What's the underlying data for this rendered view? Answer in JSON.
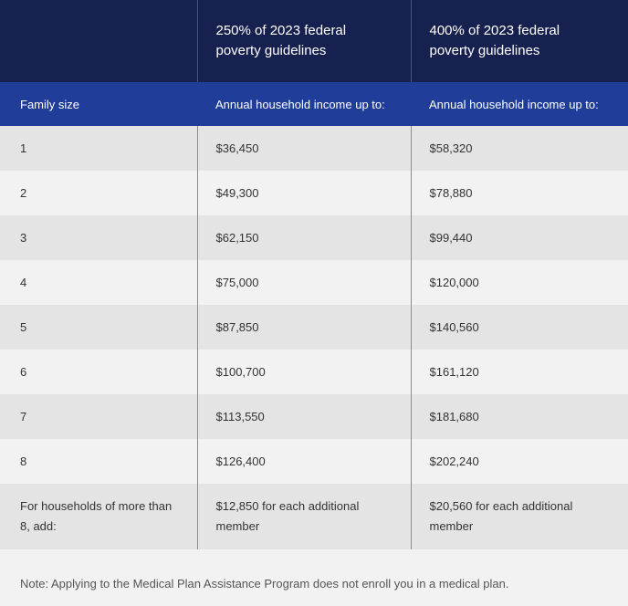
{
  "header": {
    "col_250": "250% of 2023 federal poverty guidelines",
    "col_400": "400% of 2023 federal poverty guidelines"
  },
  "subheader": {
    "family_size": "Family size",
    "income_250": "Annual household income up to:",
    "income_400": "Annual household income up to:"
  },
  "rows": [
    {
      "size": "1",
      "fpl250": "$36,450",
      "fpl400": "$58,320"
    },
    {
      "size": "2",
      "fpl250": "$49,300",
      "fpl400": "$78,880"
    },
    {
      "size": "3",
      "fpl250": "$62,150",
      "fpl400": "$99,440"
    },
    {
      "size": "4",
      "fpl250": "$75,000",
      "fpl400": "$120,000"
    },
    {
      "size": "5",
      "fpl250": "$87,850",
      "fpl400": "$140,560"
    },
    {
      "size": "6",
      "fpl250": "$100,700",
      "fpl400": "$161,120"
    },
    {
      "size": "7",
      "fpl250": "$113,550",
      "fpl400": "$181,680"
    },
    {
      "size": "8",
      "fpl250": "$126,400",
      "fpl400": "$202,240"
    }
  ],
  "additional": {
    "label": "For households of more than 8, add:",
    "fpl250": "$12,850 for each additional member",
    "fpl400": "$20,560 for each additional member"
  },
  "note": "Note: Applying to the Medical Plan Assistance Program does not enroll you in a medical plan.",
  "colors": {
    "header_dark": "#16214f",
    "header_blue": "#1f3d99",
    "row_dark": "#e4e4e4",
    "row_light": "#f2f2f2"
  }
}
